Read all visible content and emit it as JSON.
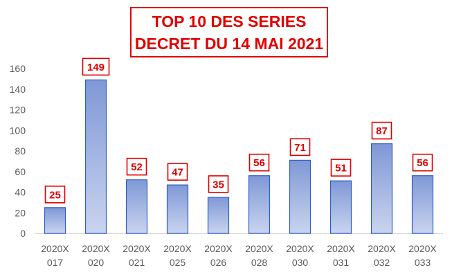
{
  "chart_data": {
    "type": "bar",
    "title_lines": [
      "TOP 10 DES SERIES",
      "DECRET  DU 14 MAI 2021"
    ],
    "categories": [
      [
        "2020X",
        "017"
      ],
      [
        "2020X",
        "020"
      ],
      [
        "2020X",
        "021"
      ],
      [
        "2020X",
        "025"
      ],
      [
        "2020X",
        "026"
      ],
      [
        "2020X",
        "028"
      ],
      [
        "2020X",
        "030"
      ],
      [
        "2020X",
        "031"
      ],
      [
        "2020X",
        "032"
      ],
      [
        "2020X",
        "033"
      ]
    ],
    "values": [
      25,
      149,
      52,
      47,
      35,
      56,
      71,
      51,
      87,
      56
    ],
    "ylim": [
      0,
      160
    ],
    "yticks": [
      0,
      20,
      40,
      60,
      80,
      100,
      120,
      140,
      160
    ],
    "grid": false,
    "legend": "none",
    "colors": {
      "bar_top": "#7f98d6",
      "bar_bottom": "#c9d4ef",
      "bar_border": "#2f5ec4",
      "label": "#e00000",
      "axis_text": "#595959",
      "axis_line": "#d0d0d0"
    }
  }
}
